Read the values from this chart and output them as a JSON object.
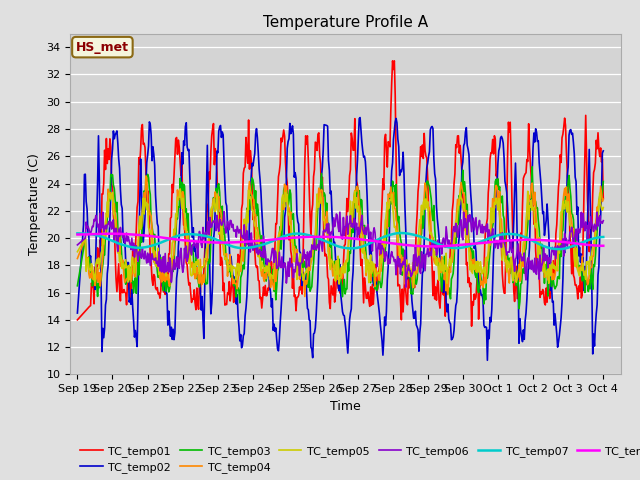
{
  "title": "Temperature Profile A",
  "xlabel": "Time",
  "ylabel": "Temperature (C)",
  "ylim": [
    10,
    35
  ],
  "yticks": [
    10,
    12,
    14,
    16,
    18,
    20,
    22,
    24,
    26,
    28,
    30,
    32,
    34
  ],
  "background_color": "#e0e0e0",
  "plot_bg_color": "#d4d4d4",
  "annotation_text": "HS_met",
  "annotation_color": "#8b0000",
  "annotation_bg": "#f5f5dc",
  "annotation_edge": "#8b6914",
  "series_colors": {
    "TC_temp01": "#ff0000",
    "TC_temp02": "#0000cc",
    "TC_temp03": "#00bb00",
    "TC_temp04": "#ff8800",
    "TC_temp05": "#cccc00",
    "TC_temp06": "#8800cc",
    "TC_temp07": "#00cccc",
    "TC_temp08": "#ff00ff"
  },
  "series_lw": {
    "TC_temp01": 1.2,
    "TC_temp02": 1.2,
    "TC_temp03": 1.2,
    "TC_temp04": 1.2,
    "TC_temp05": 1.2,
    "TC_temp06": 1.2,
    "TC_temp07": 1.8,
    "TC_temp08": 1.8
  },
  "tick_labels": [
    "Sep 19",
    "Sep 20",
    "Sep 21",
    "Sep 22",
    "Sep 23",
    "Sep 24",
    "Sep 25",
    "Sep 26",
    "Sep 27",
    "Sep 28",
    "Sep 29",
    "Sep 30",
    "Oct 1",
    "Oct 2",
    "Oct 3",
    "Oct 4"
  ],
  "tick_positions": [
    0,
    1,
    2,
    3,
    4,
    5,
    6,
    7,
    8,
    9,
    10,
    11,
    12,
    13,
    14,
    15
  ]
}
